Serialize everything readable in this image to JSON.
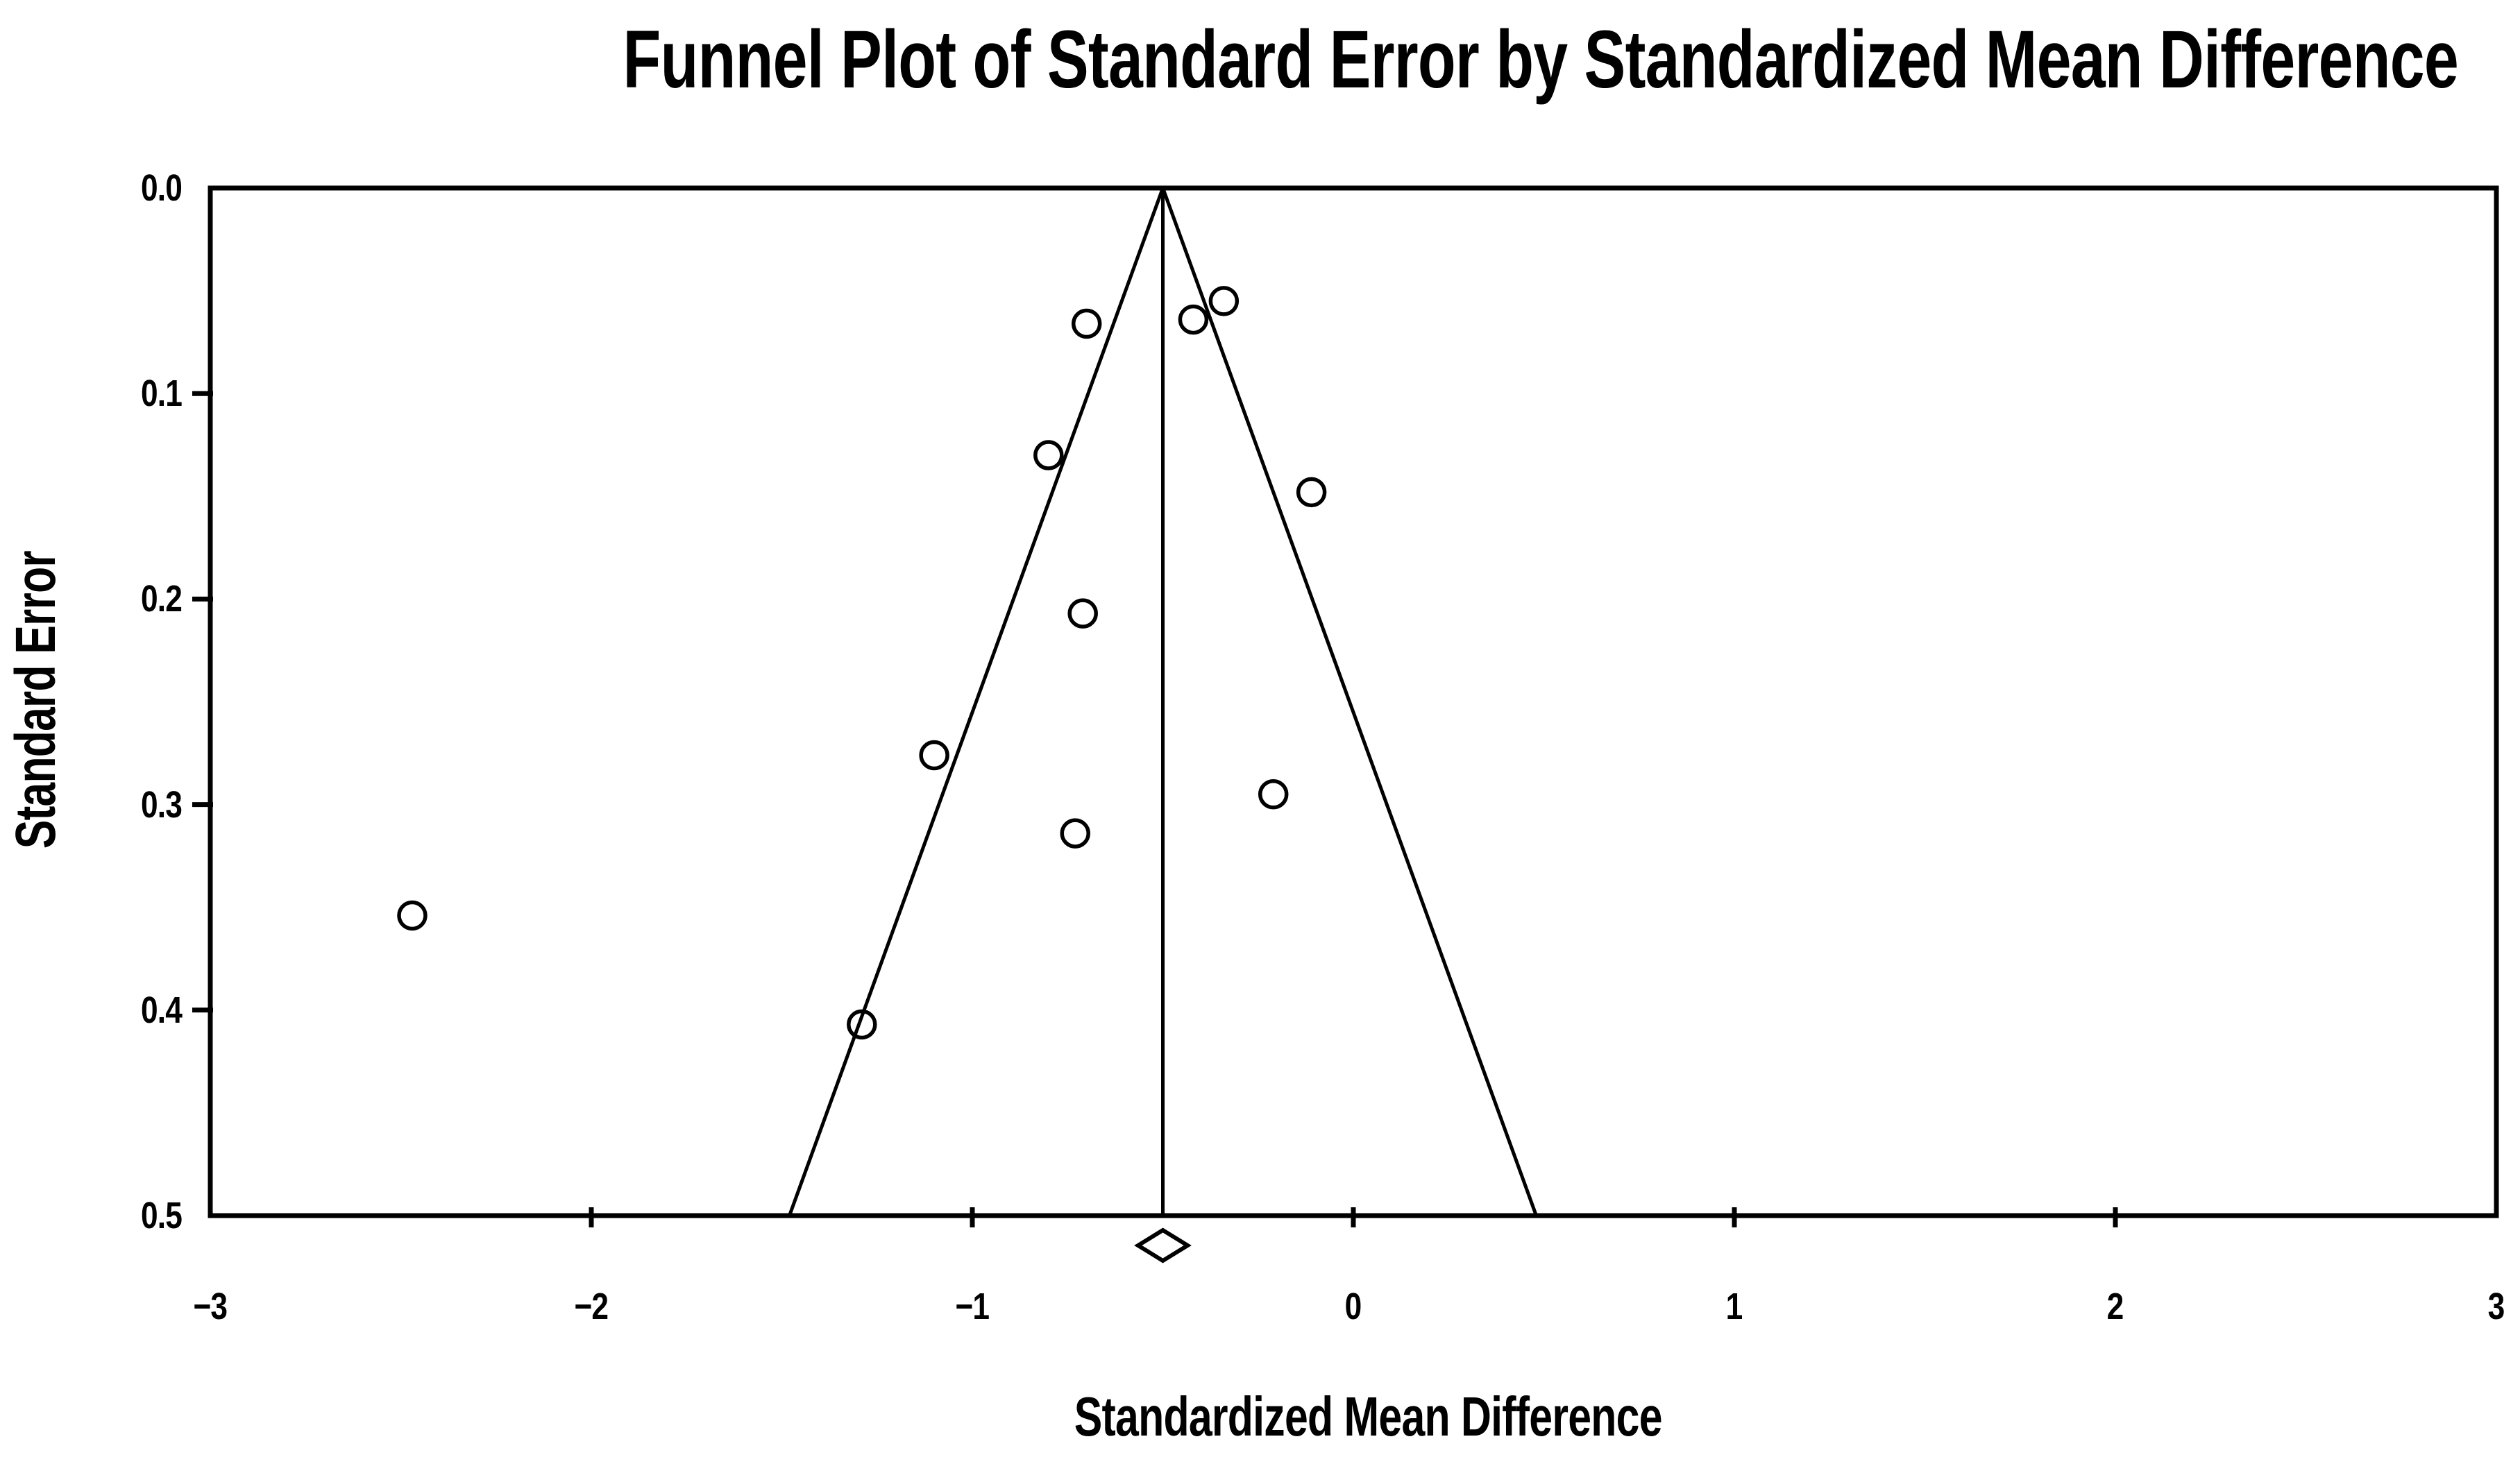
{
  "chart_data": {
    "type": "scatter",
    "title": "Funnel Plot of Standard Error by Standardized Mean Difference",
    "xlabel": "Standardized Mean Difference",
    "ylabel": "Standard Error",
    "xlim": [
      -3,
      3
    ],
    "ylim": [
      0,
      0.5
    ],
    "y_axis_inverted": true,
    "grid": false,
    "legend": "none",
    "x_ticks": [
      -3,
      -2,
      -1,
      0,
      1,
      2,
      3
    ],
    "x_tick_labels": [
      "−3",
      "−2",
      "−1",
      "0",
      "1",
      "2",
      "3"
    ],
    "x_tick_marks": [
      -2,
      -1,
      0,
      1,
      2
    ],
    "y_ticks": [
      0.0,
      0.1,
      0.2,
      0.3,
      0.4,
      0.5
    ],
    "y_tick_labels": [
      "0.0",
      "0.1",
      "0.2",
      "0.3",
      "0.4",
      "0.5"
    ],
    "y_tick_marks": [
      0.1,
      0.2,
      0.3,
      0.4
    ],
    "points": [
      {
        "x": -0.34,
        "se": 0.055
      },
      {
        "x": -0.42,
        "se": 0.064
      },
      {
        "x": -0.7,
        "se": 0.066
      },
      {
        "x": -0.8,
        "se": 0.13
      },
      {
        "x": -0.11,
        "se": 0.148
      },
      {
        "x": -0.71,
        "se": 0.207
      },
      {
        "x": -1.1,
        "se": 0.276
      },
      {
        "x": -0.21,
        "se": 0.295
      },
      {
        "x": -0.73,
        "se": 0.314
      },
      {
        "x": -2.47,
        "se": 0.354
      },
      {
        "x": -1.29,
        "se": 0.407
      }
    ],
    "funnel": {
      "apex_x": -0.5,
      "slope_per_se": 1.96,
      "se_max": 0.5
    },
    "center_line_x": -0.5,
    "pooled_diamond": {
      "center": -0.5,
      "ci_low": -0.565,
      "ci_high": -0.435
    }
  }
}
